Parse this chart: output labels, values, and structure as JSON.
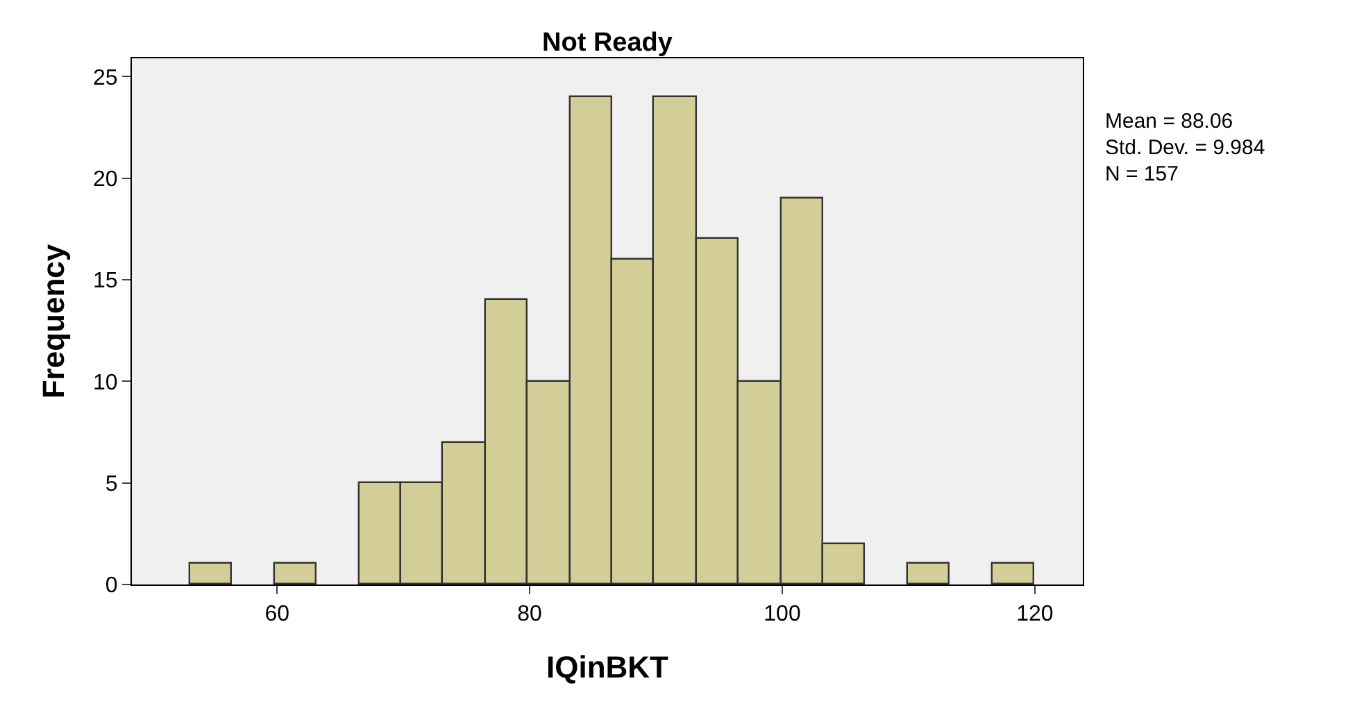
{
  "chart_data": {
    "type": "histogram",
    "title": "Not Ready",
    "xlabel": "IQinBKT",
    "ylabel": "Frequency",
    "bins": [
      53.1,
      56.4,
      59.8,
      63.1,
      66.5,
      69.8,
      73.1,
      76.5,
      79.8,
      83.2,
      86.5,
      89.8,
      93.2,
      96.5,
      99.9,
      103.2,
      106.5,
      109.9,
      113.2,
      116.6,
      120
    ],
    "values": [
      1,
      0,
      1,
      0,
      5,
      5,
      7,
      14,
      10,
      24,
      16,
      24,
      17,
      10,
      19,
      2,
      0,
      1,
      0,
      1
    ],
    "color": "#d3ce97",
    "xlim": [
      48.5,
      123.8
    ],
    "xticks": [
      60,
      80,
      100,
      120
    ],
    "ylim": [
      0,
      25.9
    ],
    "yticks": [
      0,
      5,
      10,
      15,
      20,
      25
    ],
    "annotations": [
      "Mean = 88.06",
      "Std. Dev. = 9.984",
      "N = 157"
    ]
  }
}
